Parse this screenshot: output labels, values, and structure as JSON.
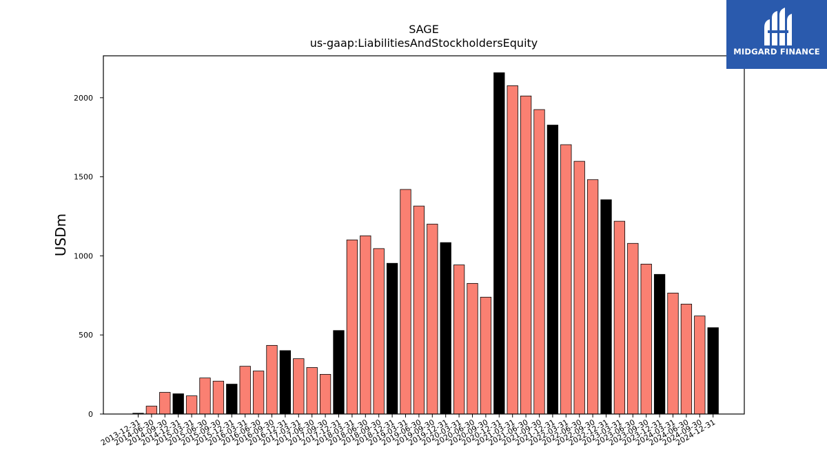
{
  "chart_data": {
    "type": "bar",
    "title": "SAGE",
    "subtitle": "us-gaap:LiabilitiesAndStockholdersEquity",
    "ylabel": "USDm",
    "xlabel": "",
    "ylim": [
      0,
      2265
    ],
    "yticks": [
      0,
      500,
      1000,
      1500,
      2000
    ],
    "grid": false,
    "colors": {
      "default": "#fa8072",
      "highlight": "#000000",
      "edge": "#000000"
    },
    "categories": [
      "2013-12-31",
      "2014-06-30",
      "2014-09-30",
      "2014-12-31",
      "2015-03-31",
      "2015-06-30",
      "2015-09-30",
      "2015-12-31",
      "2016-03-31",
      "2016-06-30",
      "2016-09-30",
      "2016-12-31",
      "2017-03-31",
      "2017-06-30",
      "2017-09-30",
      "2017-12-31",
      "2018-03-31",
      "2018-06-30",
      "2018-09-30",
      "2018-12-31",
      "2019-03-31",
      "2019-06-30",
      "2019-09-30",
      "2019-12-31",
      "2020-03-31",
      "2020-06-30",
      "2020-09-30",
      "2020-12-31",
      "2021-03-31",
      "2021-06-30",
      "2021-09-30",
      "2021-12-31",
      "2022-03-31",
      "2022-06-30",
      "2022-09-30",
      "2022-12-31",
      "2023-03-31",
      "2023-06-30",
      "2023-09-30",
      "2023-12-31",
      "2024-03-31",
      "2024-06-30",
      "2024-09-30",
      "2024-12-31"
    ],
    "values": [
      5,
      50,
      137,
      128,
      115,
      228,
      208,
      189,
      302,
      272,
      434,
      401,
      350,
      294,
      251,
      528,
      1101,
      1127,
      1046,
      953,
      1420,
      1315,
      1201,
      1084,
      943,
      826,
      739,
      2158,
      2076,
      2011,
      1925,
      1827,
      1703,
      1598,
      1482,
      1355,
      1219,
      1079,
      948,
      883,
      765,
      695,
      620,
      546
    ],
    "highlighted": [
      "2013-12-31",
      "2014-12-31",
      "2015-12-31",
      "2016-12-31",
      "2017-12-31",
      "2018-12-31",
      "2019-12-31",
      "2020-12-31",
      "2021-12-31",
      "2022-12-31",
      "2023-12-31",
      "2024-12-31"
    ]
  },
  "logo": {
    "text": "MIDGARD FINANCE"
  }
}
